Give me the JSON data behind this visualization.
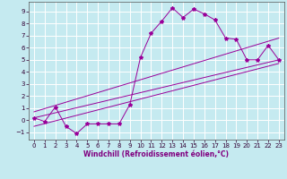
{
  "title": "",
  "xlabel": "Windchill (Refroidissement éolien,°C)",
  "bg_color": "#c5eaf0",
  "grid_color": "#ffffff",
  "line_color": "#990099",
  "xlim": [
    -0.5,
    23.5
  ],
  "ylim": [
    -1.6,
    9.8
  ],
  "xticks": [
    0,
    1,
    2,
    3,
    4,
    5,
    6,
    7,
    8,
    9,
    10,
    11,
    12,
    13,
    14,
    15,
    16,
    17,
    18,
    19,
    20,
    21,
    22,
    23
  ],
  "yticks": [
    -1,
    0,
    1,
    2,
    3,
    4,
    5,
    6,
    7,
    8,
    9
  ],
  "main_x": [
    0,
    1,
    2,
    3,
    4,
    5,
    6,
    7,
    8,
    9,
    10,
    11,
    12,
    13,
    14,
    15,
    16,
    17,
    18,
    19,
    20,
    21,
    22,
    23
  ],
  "main_y": [
    0.2,
    -0.1,
    1.1,
    -0.5,
    -1.1,
    -0.3,
    -0.3,
    -0.3,
    -0.3,
    1.3,
    5.2,
    7.2,
    8.2,
    9.3,
    8.5,
    9.2,
    8.8,
    8.3,
    6.8,
    6.7,
    5.0,
    5.0,
    6.2,
    5.0
  ],
  "line1_x": [
    0,
    23
  ],
  "line1_y": [
    0.2,
    5.0
  ],
  "line2_x": [
    0,
    23
  ],
  "line2_y": [
    -0.5,
    4.7
  ],
  "line3_x": [
    0,
    23
  ],
  "line3_y": [
    0.7,
    6.8
  ],
  "tick_fontsize": 5.0,
  "xlabel_fontsize": 5.5,
  "label_color": "#800080"
}
